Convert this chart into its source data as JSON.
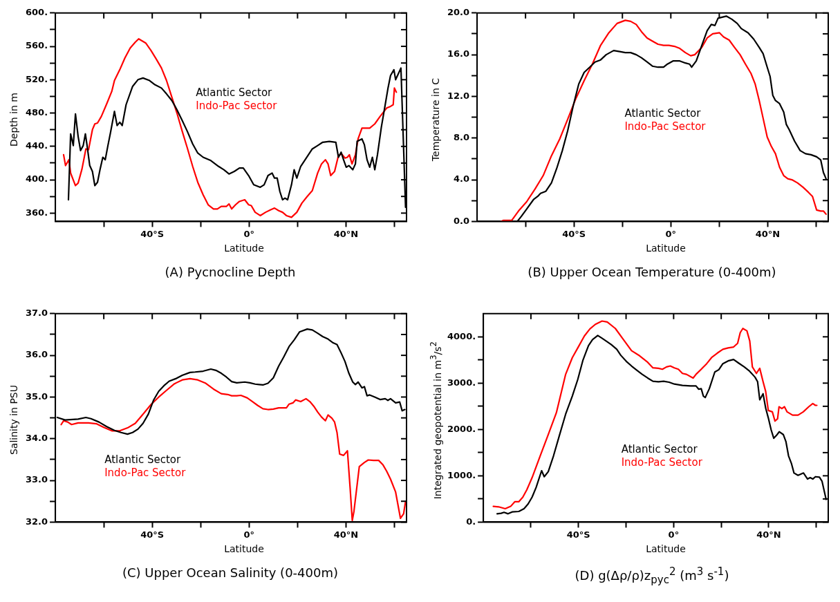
{
  "chart_data": [
    {
      "type": "line",
      "title": "(A) Pycnocline Depth",
      "xlabel": "Latitude",
      "ylabel": "Depth in m",
      "legend": "top right",
      "marker": "none",
      "line_style": "solid",
      "grid": false,
      "xlim": [
        -80,
        65
      ],
      "xticks": [
        {
          "value": -60,
          "label": null
        },
        {
          "value": -40,
          "label": "40°S"
        },
        {
          "value": -20,
          "label": null
        },
        {
          "value": 0,
          "label": "0°"
        },
        {
          "value": 20,
          "label": null
        },
        {
          "value": 40,
          "label": "40°N"
        },
        {
          "value": 60,
          "label": null
        }
      ],
      "ylim": [
        350,
        600
      ],
      "yticks": [
        {
          "value": 360,
          "label": "360."
        },
        {
          "value": 380,
          "label": null
        },
        {
          "value": 400,
          "label": "400."
        },
        {
          "value": 420,
          "label": null
        },
        {
          "value": 440,
          "label": "440."
        },
        {
          "value": 460,
          "label": null
        },
        {
          "value": 480,
          "label": "480."
        },
        {
          "value": 500,
          "label": null
        },
        {
          "value": 520,
          "label": "520."
        },
        {
          "value": 540,
          "label": null
        },
        {
          "value": 560,
          "label": "560."
        },
        {
          "value": 580,
          "label": null
        },
        {
          "value": 600,
          "label": "600."
        }
      ],
      "series": [
        {
          "name": "Atlantic Sector",
          "color": "#000000",
          "x": [
            -74.6,
            -73.7,
            -72.6,
            -71.7,
            -70.6,
            -69.6,
            -68.5,
            -67.6,
            -66.9,
            -65.8,
            -64.7,
            -63.7,
            -62.6,
            -61.5,
            -60.4,
            -59.4,
            -58.3,
            -57.2,
            -55.6,
            -54.5,
            -53.4,
            -52.4,
            -50.8,
            -48.1,
            -45.9,
            -43.8,
            -41.1,
            -38.9,
            -36.2,
            -34.1,
            -31.9,
            -29.8,
            -27.6,
            -25.5,
            -23.3,
            -21.2,
            -19.0,
            -15.8,
            -12.6,
            -10.4,
            -8.3,
            -6.1,
            -4.0,
            -2.4,
            -0.2,
            1.9,
            4.6,
            6.2,
            7.8,
            9.5,
            10.5,
            11.6,
            12.7,
            13.8,
            14.8,
            15.9,
            17.5,
            18.6,
            19.7,
            21.3,
            22.9,
            24.5,
            26.1,
            28.3,
            30.4,
            33.1,
            35.8,
            36.9,
            38.0,
            39.0,
            40.1,
            41.2,
            42.8,
            43.9,
            44.6,
            46.6,
            47.6,
            48.7,
            49.8,
            50.9,
            51.9,
            53.0,
            54.6,
            56.2,
            57.3,
            58.4,
            59.8,
            60.5,
            62.7,
            64.6
          ],
          "values": [
            376,
            455,
            441,
            479,
            452,
            435,
            441,
            455,
            441,
            417,
            410,
            393,
            397,
            413,
            427,
            424,
            441,
            457,
            482,
            465,
            469,
            465,
            490,
            512,
            520,
            522,
            519,
            514,
            510,
            503,
            495,
            484,
            471,
            458,
            443,
            432,
            427,
            423,
            416,
            412,
            407,
            410,
            414,
            414,
            405,
            394,
            391,
            394,
            405,
            408,
            402,
            402,
            386,
            376,
            378,
            376,
            394,
            412,
            402,
            416,
            423,
            430,
            437,
            441,
            445,
            446,
            445,
            427,
            433,
            424,
            415,
            417,
            412,
            419,
            446,
            449,
            442,
            424,
            415,
            427,
            412,
            430,
            463,
            490,
            509,
            525,
            532,
            520,
            534,
            367
          ]
        },
        {
          "name": "Indo-Pac Sector",
          "color": "#ff0000",
          "x": [
            -76.6,
            -75.8,
            -74.4,
            -73.7,
            -71.7,
            -70.6,
            -69.0,
            -67.4,
            -66.3,
            -64.7,
            -63.7,
            -62.6,
            -61.0,
            -58.8,
            -56.7,
            -55.6,
            -53.4,
            -51.3,
            -49.1,
            -47.0,
            -45.6,
            -42.7,
            -40.5,
            -38.4,
            -36.2,
            -34.1,
            -31.9,
            -29.8,
            -27.6,
            -25.5,
            -23.3,
            -21.2,
            -19.0,
            -16.9,
            -14.7,
            -13.1,
            -11.5,
            -9.4,
            -8.3,
            -7.2,
            -5.6,
            -4.0,
            -1.8,
            -0.2,
            0.9,
            2.5,
            4.6,
            6.8,
            8.9,
            10.5,
            12.2,
            13.8,
            15.4,
            17.5,
            19.7,
            21.8,
            24.0,
            26.1,
            28.3,
            29.9,
            31.5,
            32.6,
            33.7,
            35.3,
            36.9,
            38.2,
            39.6,
            40.6,
            41.4,
            42.5,
            43.9,
            45.0,
            46.6,
            48.7,
            49.8,
            51.9,
            54.1,
            56.8,
            58.4,
            59.5,
            60.0,
            60.8
          ],
          "values": [
            430,
            417,
            424,
            408,
            393,
            396,
            413,
            437,
            436,
            460,
            467,
            468,
            476,
            491,
            506,
            519,
            532,
            546,
            558,
            565,
            569,
            564,
            555,
            545,
            534,
            519,
            499,
            480,
            458,
            438,
            416,
            397,
            382,
            370,
            365,
            365,
            368,
            368,
            371,
            365,
            370,
            374,
            376,
            370,
            369,
            361,
            357,
            361,
            364,
            366,
            363,
            361,
            357,
            355,
            361,
            372,
            380,
            387,
            408,
            419,
            424,
            419,
            405,
            410,
            429,
            431,
            426,
            427,
            430,
            419,
            430,
            449,
            462,
            462,
            462,
            467,
            476,
            486,
            488,
            490,
            510,
            505
          ]
        }
      ]
    },
    {
      "type": "line",
      "title": "(B) Upper Ocean Temperature (0-400m)",
      "xlabel": "Latitude",
      "ylabel": "Temperature in C",
      "legend": "right",
      "marker": "none",
      "line_style": "solid",
      "grid": false,
      "xlim": [
        -80,
        65
      ],
      "xticks": [
        {
          "value": -60,
          "label": null
        },
        {
          "value": -40,
          "label": "40°S"
        },
        {
          "value": -20,
          "label": null
        },
        {
          "value": 0,
          "label": "0°"
        },
        {
          "value": 20,
          "label": null
        },
        {
          "value": 40,
          "label": "40°N"
        },
        {
          "value": 60,
          "label": null
        }
      ],
      "ylim": [
        0,
        20
      ],
      "yticks": [
        {
          "value": 0,
          "label": "0.0"
        },
        {
          "value": 2,
          "label": null
        },
        {
          "value": 4,
          "label": "4.0"
        },
        {
          "value": 6,
          "label": null
        },
        {
          "value": 8,
          "label": "8.0"
        },
        {
          "value": 10,
          "label": null
        },
        {
          "value": 12,
          "label": "12.0"
        },
        {
          "value": 14,
          "label": null
        },
        {
          "value": 16,
          "label": "16.0"
        },
        {
          "value": 18,
          "label": null
        },
        {
          "value": 20,
          "label": "20.0"
        }
      ],
      "series": [
        {
          "name": "Atlantic Sector",
          "color": "#000000",
          "x": [
            -63.4,
            -61.7,
            -59.5,
            -56.7,
            -55.0,
            -53.8,
            -51.6,
            -49.3,
            -47.1,
            -44.8,
            -42.6,
            -40.3,
            -38.0,
            -35.8,
            -33.5,
            -31.3,
            -29.0,
            -26.7,
            -23.6,
            -21.1,
            -18.8,
            -16.6,
            -14.3,
            -12.1,
            -9.8,
            -7.6,
            -5.3,
            -3.0,
            -1.4,
            0.9,
            3.7,
            6.0,
            7.7,
            8.6,
            10.5,
            12.8,
            15.0,
            16.7,
            18.2,
            19.5,
            22.9,
            25.2,
            27.4,
            29.1,
            31.9,
            34.2,
            36.5,
            38.1,
            39.8,
            41.0,
            42.1,
            43.2,
            44.9,
            46.6,
            47.7,
            48.9,
            51.1,
            53.4,
            55.6,
            57.9,
            60.2,
            61.9,
            63.0,
            64.1
          ],
          "values": [
            0.0,
            0.5,
            1.2,
            2.1,
            2.4,
            2.7,
            2.9,
            3.7,
            5.1,
            6.8,
            8.7,
            11.1,
            13.2,
            14.3,
            14.8,
            15.3,
            15.5,
            16.0,
            16.4,
            16.3,
            16.2,
            16.2,
            16.0,
            15.7,
            15.3,
            14.9,
            14.8,
            14.8,
            15.1,
            15.4,
            15.4,
            15.2,
            15.1,
            14.8,
            15.4,
            16.9,
            18.3,
            18.9,
            18.8,
            19.5,
            19.7,
            19.4,
            19.0,
            18.5,
            18.1,
            17.5,
            16.7,
            16.1,
            14.8,
            13.9,
            12.1,
            11.6,
            11.3,
            10.5,
            9.3,
            8.8,
            7.7,
            6.8,
            6.5,
            6.4,
            6.2,
            5.9,
            4.7,
            4.1
          ]
        },
        {
          "name": "Indo-Pac Sector",
          "color": "#ff0000",
          "x": [
            -70.2,
            -69.1,
            -65.7,
            -62.9,
            -59.5,
            -56.1,
            -52.7,
            -49.3,
            -45.9,
            -42.6,
            -39.2,
            -35.8,
            -32.4,
            -29.0,
            -25.6,
            -22.2,
            -18.8,
            -16.6,
            -14.3,
            -12.1,
            -9.8,
            -7.6,
            -5.3,
            -3.0,
            -0.8,
            1.5,
            3.7,
            6.0,
            8.2,
            9.9,
            12.8,
            15.0,
            17.3,
            20.1,
            21.8,
            24.1,
            26.3,
            28.6,
            30.8,
            33.1,
            34.8,
            36.5,
            38.2,
            39.8,
            41.5,
            43.2,
            44.9,
            46.6,
            48.3,
            50.0,
            52.3,
            54.5,
            56.8,
            58.5,
            60.2,
            61.9,
            63.0,
            64.1
          ],
          "values": [
            0.0,
            0.1,
            0.1,
            1.0,
            1.9,
            3.1,
            4.4,
            6.3,
            7.9,
            9.8,
            11.8,
            13.5,
            15.1,
            16.9,
            18.1,
            19.0,
            19.3,
            19.2,
            18.9,
            18.2,
            17.6,
            17.3,
            17.0,
            16.9,
            16.9,
            16.8,
            16.6,
            16.2,
            15.9,
            16.0,
            16.7,
            17.6,
            18.0,
            18.1,
            17.7,
            17.4,
            16.7,
            16.0,
            15.1,
            14.2,
            13.2,
            11.6,
            9.8,
            8.1,
            7.2,
            6.5,
            5.2,
            4.4,
            4.1,
            4.0,
            3.7,
            3.3,
            2.8,
            2.4,
            1.1,
            1.0,
            1.0,
            0.7
          ]
        }
      ]
    },
    {
      "type": "line",
      "title": "(C) Upper Ocean Salinity (0-400m)",
      "xlabel": "Latitude",
      "ylabel": "Salinity in PSU",
      "legend": "bottom left",
      "marker": "none",
      "line_style": "solid",
      "grid": false,
      "xlim": [
        -80,
        65
      ],
      "xticks": [
        {
          "value": -60,
          "label": null
        },
        {
          "value": -40,
          "label": "40°S"
        },
        {
          "value": -20,
          "label": null
        },
        {
          "value": 0,
          "label": "0°"
        },
        {
          "value": 20,
          "label": null
        },
        {
          "value": 40,
          "label": "40°N"
        },
        {
          "value": 60,
          "label": null
        }
      ],
      "ylim": [
        32,
        37
      ],
      "yticks": [
        {
          "value": 32,
          "label": "32.0"
        },
        {
          "value": 32.5,
          "label": null
        },
        {
          "value": 33,
          "label": "33.0"
        },
        {
          "value": 33.5,
          "label": null
        },
        {
          "value": 34,
          "label": "34.0"
        },
        {
          "value": 34.5,
          "label": null
        },
        {
          "value": 35,
          "label": "35.0"
        },
        {
          "value": 35.5,
          "label": null
        },
        {
          "value": 36,
          "label": "36.0"
        },
        {
          "value": 36.5,
          "label": null
        },
        {
          "value": 37,
          "label": "37.0"
        }
      ],
      "series": [
        {
          "name": "Atlantic Sector",
          "color": "#000000",
          "x": [
            -79.2,
            -76.0,
            -70.6,
            -67.4,
            -65.3,
            -62.0,
            -58.8,
            -55.6,
            -52.9,
            -50.2,
            -48.1,
            -45.9,
            -43.8,
            -41.6,
            -39.5,
            -37.3,
            -35.2,
            -33.0,
            -30.3,
            -27.6,
            -24.4,
            -22.3,
            -19.0,
            -15.8,
            -13.7,
            -11.5,
            -9.4,
            -7.2,
            -5.1,
            -1.8,
            0.3,
            2.5,
            4.1,
            5.7,
            7.8,
            10.0,
            12.2,
            14.3,
            16.5,
            18.6,
            20.8,
            24.0,
            26.1,
            28.3,
            30.4,
            32.6,
            34.7,
            36.3,
            37.9,
            39.6,
            41.2,
            42.8,
            43.9,
            45.0,
            46.6,
            47.6,
            48.7,
            49.8,
            51.9,
            54.1,
            56.2,
            57.3,
            58.4,
            60.5,
            62.2,
            63.2,
            64.3
          ],
          "values": [
            34.51,
            34.45,
            34.47,
            34.51,
            34.48,
            34.4,
            34.29,
            34.2,
            34.15,
            34.11,
            34.15,
            34.23,
            34.37,
            34.59,
            34.92,
            35.14,
            35.27,
            35.38,
            35.44,
            35.52,
            35.59,
            35.6,
            35.62,
            35.67,
            35.64,
            35.57,
            35.48,
            35.37,
            35.34,
            35.36,
            35.34,
            35.31,
            35.3,
            35.29,
            35.33,
            35.46,
            35.74,
            35.96,
            36.21,
            36.37,
            36.56,
            36.63,
            36.61,
            36.53,
            36.45,
            36.39,
            36.3,
            36.26,
            36.07,
            35.85,
            35.57,
            35.36,
            35.3,
            35.36,
            35.22,
            35.25,
            35.03,
            35.05,
            35.0,
            34.94,
            34.96,
            34.92,
            34.96,
            34.86,
            34.88,
            34.67,
            34.7
          ]
        },
        {
          "name": "Indo-Pac Sector",
          "color": "#ff0000",
          "x": [
            -77.6,
            -76.6,
            -74.9,
            -73.3,
            -70.6,
            -66.3,
            -63.1,
            -59.9,
            -56.7,
            -53.4,
            -50.2,
            -47.0,
            -43.8,
            -40.5,
            -37.3,
            -34.1,
            -30.8,
            -27.6,
            -24.4,
            -21.2,
            -17.9,
            -14.7,
            -11.5,
            -8.8,
            -7.2,
            -5.1,
            -3.4,
            -0.8,
            1.4,
            3.5,
            5.7,
            7.8,
            10.0,
            12.2,
            15.4,
            16.5,
            18.1,
            19.2,
            21.3,
            23.5,
            25.1,
            26.7,
            28.3,
            29.9,
            31.5,
            32.6,
            34.2,
            35.3,
            36.3,
            37.4,
            39.0,
            40.6,
            41.7,
            42.6,
            43.3,
            45.5,
            47.6,
            49.2,
            51.4,
            53.5,
            55.2,
            56.8,
            58.4,
            60.5,
            62.5,
            63.8,
            64.6
          ],
          "values": [
            34.34,
            34.43,
            34.4,
            34.34,
            34.38,
            34.38,
            34.36,
            34.27,
            34.19,
            34.19,
            34.26,
            34.37,
            34.59,
            34.82,
            35.0,
            35.16,
            35.32,
            35.41,
            35.44,
            35.41,
            35.33,
            35.19,
            35.08,
            35.06,
            35.03,
            35.03,
            35.04,
            34.98,
            34.89,
            34.8,
            34.72,
            34.7,
            34.71,
            34.74,
            34.74,
            34.83,
            34.86,
            34.93,
            34.89,
            34.96,
            34.89,
            34.78,
            34.64,
            34.52,
            34.43,
            34.57,
            34.49,
            34.4,
            34.15,
            33.63,
            33.6,
            33.71,
            32.83,
            32.04,
            32.26,
            33.33,
            33.43,
            33.49,
            33.48,
            33.48,
            33.38,
            33.22,
            33.03,
            32.72,
            32.09,
            32.2,
            32.5
          ]
        }
      ]
    },
    {
      "type": "line",
      "title": "(D) g(Δρ/ρ)z$_{pyc}$$^{2}$ (m$^{3}$ s$^{-1}$)",
      "xlabel": "Latitude",
      "ylabel": "Integrated geopotential in m$^{3}$/s$^{2}$",
      "legend": "bottom",
      "marker": "none",
      "line_style": "solid",
      "grid": false,
      "xlim": [
        -80,
        65
      ],
      "xticks": [
        {
          "value": -60,
          "label": null
        },
        {
          "value": -40,
          "label": "40°S"
        },
        {
          "value": -20,
          "label": null
        },
        {
          "value": 0,
          "label": "0°"
        },
        {
          "value": 20,
          "label": null
        },
        {
          "value": 40,
          "label": "40°N"
        },
        {
          "value": 60,
          "label": null
        }
      ],
      "ylim": [
        0,
        4500
      ],
      "yticks": [
        {
          "value": 0,
          "label": "0."
        },
        {
          "value": 500,
          "label": null
        },
        {
          "value": 1000,
          "label": "1000."
        },
        {
          "value": 1500,
          "label": null
        },
        {
          "value": 2000,
          "label": "2000."
        },
        {
          "value": 2500,
          "label": null
        },
        {
          "value": 3000,
          "label": "3000."
        },
        {
          "value": 3500,
          "label": null
        },
        {
          "value": 4000,
          "label": "4000."
        }
      ],
      "series": [
        {
          "name": "Atlantic Sector",
          "color": "#000000",
          "x": [
            -74.2,
            -72.5,
            -71.3,
            -69.6,
            -67.9,
            -65.1,
            -62.9,
            -61.2,
            -59.5,
            -57.8,
            -55.5,
            -54.4,
            -52.7,
            -50.5,
            -48.2,
            -45.4,
            -42.6,
            -40.3,
            -38.1,
            -35.8,
            -34.1,
            -31.9,
            -30.1,
            -28.4,
            -26.2,
            -23.9,
            -22.2,
            -19.9,
            -17.7,
            -15.5,
            -13.2,
            -10.9,
            -8.7,
            -6.4,
            -4.2,
            -1.9,
            0.3,
            3.7,
            7.1,
            9.4,
            10.5,
            11.6,
            12.5,
            13.3,
            15.0,
            17.3,
            19.0,
            20.7,
            22.9,
            25.2,
            27.4,
            29.7,
            31.9,
            34.2,
            35.3,
            36.2,
            37.6,
            38.7,
            39.8,
            41.0,
            42.1,
            43.2,
            44.4,
            46.1,
            47.2,
            48.3,
            49.5,
            50.6,
            52.3,
            54.6,
            56.3,
            57.4,
            58.5,
            59.6,
            61.3,
            62.4,
            64.1
          ],
          "values": [
            180,
            190,
            210,
            180,
            220,
            230,
            290,
            390,
            540,
            750,
            1110,
            980,
            1090,
            1430,
            1840,
            2330,
            2720,
            3080,
            3500,
            3810,
            3940,
            4030,
            3970,
            3910,
            3830,
            3730,
            3600,
            3470,
            3370,
            3280,
            3190,
            3110,
            3040,
            3030,
            3040,
            3020,
            2980,
            2950,
            2940,
            2940,
            2870,
            2880,
            2720,
            2690,
            2880,
            3240,
            3290,
            3420,
            3480,
            3510,
            3430,
            3350,
            3260,
            3130,
            3030,
            2640,
            2770,
            2460,
            2250,
            1990,
            1810,
            1870,
            1950,
            1890,
            1740,
            1430,
            1270,
            1060,
            1010,
            1060,
            930,
            960,
            930,
            980,
            970,
            880,
            490
          ]
        },
        {
          "name": "Indo-Pac Sector",
          "color": "#ff0000",
          "x": [
            -75.8,
            -73.6,
            -70.8,
            -68.5,
            -66.8,
            -65.1,
            -63.4,
            -61.7,
            -59.5,
            -56.1,
            -52.7,
            -49.3,
            -45.4,
            -42.6,
            -40.3,
            -37.5,
            -35.2,
            -32.9,
            -30.1,
            -27.9,
            -24.5,
            -21.1,
            -17.7,
            -14.3,
            -10.9,
            -8.7,
            -6.4,
            -4.7,
            -3.0,
            -1.4,
            0.3,
            2.0,
            3.7,
            5.4,
            8.2,
            9.4,
            11.6,
            13.9,
            16.1,
            18.4,
            20.7,
            22.9,
            25.2,
            26.9,
            28.0,
            29.1,
            30.8,
            32.0,
            33.1,
            34.8,
            36.2,
            37.6,
            38.7,
            39.8,
            41.5,
            42.6,
            43.7,
            44.3,
            45.5,
            46.6,
            47.7,
            50.0,
            52.3,
            54.5,
            56.8,
            58.5,
            59.6,
            60.2
          ],
          "values": [
            340,
            330,
            290,
            340,
            440,
            440,
            540,
            700,
            960,
            1430,
            1890,
            2360,
            3190,
            3550,
            3760,
            4020,
            4170,
            4270,
            4340,
            4320,
            4180,
            3940,
            3700,
            3590,
            3450,
            3330,
            3320,
            3300,
            3350,
            3370,
            3330,
            3300,
            3210,
            3190,
            3110,
            3190,
            3300,
            3420,
            3560,
            3650,
            3730,
            3760,
            3780,
            3860,
            4090,
            4180,
            4130,
            3910,
            3350,
            3210,
            3320,
            3030,
            2820,
            2410,
            2380,
            2180,
            2230,
            2490,
            2450,
            2490,
            2380,
            2310,
            2310,
            2380,
            2490,
            2560,
            2520,
            2520
          ]
        }
      ]
    }
  ]
}
